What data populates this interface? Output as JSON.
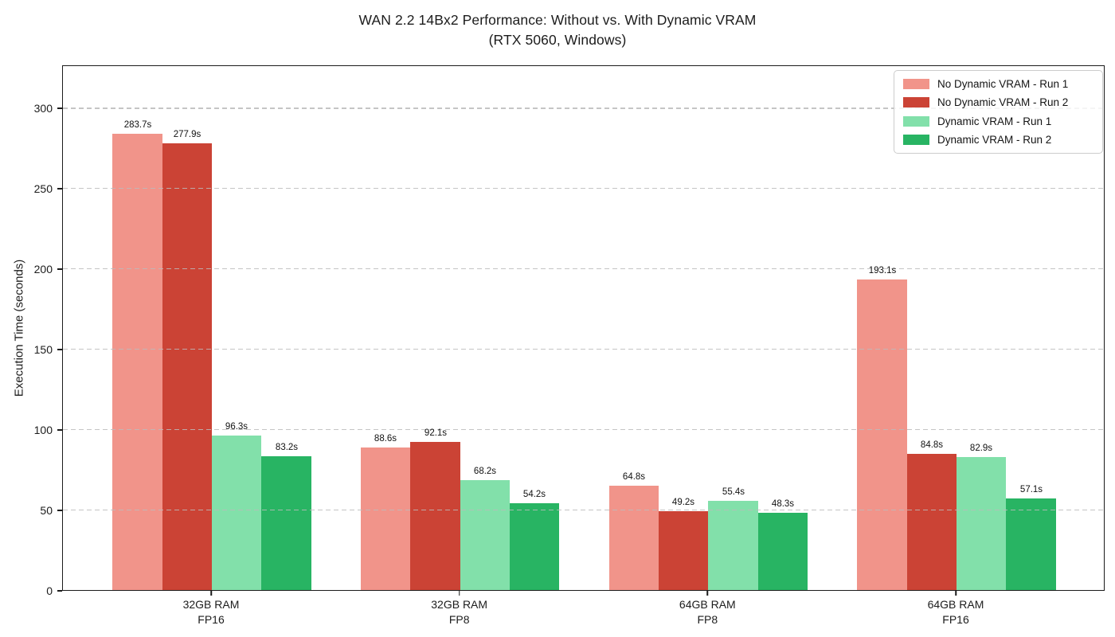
{
  "chart_data": {
    "type": "bar",
    "title": "WAN 2.2 14Bx2 Performance: Without vs. With Dynamic VRAM (RTX 5060, Windows)",
    "title_display": "WAN 2.2 14Bx2 Performance: Without vs. With Dynamic VRAM\n(RTX 5060, Windows)",
    "xlabel": "",
    "ylabel": "Execution Time (seconds)",
    "categories": [
      "32GB RAM\nFP16",
      "32GB RAM\nFP8",
      "64GB RAM\nFP8",
      "64GB RAM\nFP16"
    ],
    "series": [
      {
        "name": "No Dynamic VRAM - Run 1",
        "color": "#f1948a",
        "values": [
          283.7,
          88.6,
          64.8,
          193.1
        ]
      },
      {
        "name": "No Dynamic VRAM - Run 2",
        "color": "#cb4335",
        "values": [
          277.9,
          92.1,
          49.2,
          84.8
        ]
      },
      {
        "name": "Dynamic VRAM - Run 1",
        "color": "#82e0aa",
        "values": [
          96.3,
          68.2,
          55.4,
          82.9
        ]
      },
      {
        "name": "Dynamic VRAM - Run 2",
        "color": "#28b463",
        "values": [
          83.2,
          54.2,
          48.3,
          57.1
        ]
      }
    ],
    "value_labels": [
      [
        "283.7s",
        "88.6s",
        "64.8s",
        "193.1s"
      ],
      [
        "277.9s",
        "92.1s",
        "49.2s",
        "84.8s"
      ],
      [
        "96.3s",
        "68.2s",
        "55.4s",
        "82.9s"
      ],
      [
        "83.2s",
        "54.2s",
        "48.3s",
        "57.1s"
      ]
    ],
    "value_suffix": "s",
    "yticks": [
      0,
      50,
      100,
      150,
      200,
      250,
      300
    ],
    "ylim": [
      0,
      327
    ],
    "grid": "horizontal dashed",
    "legend_position": "upper right"
  }
}
